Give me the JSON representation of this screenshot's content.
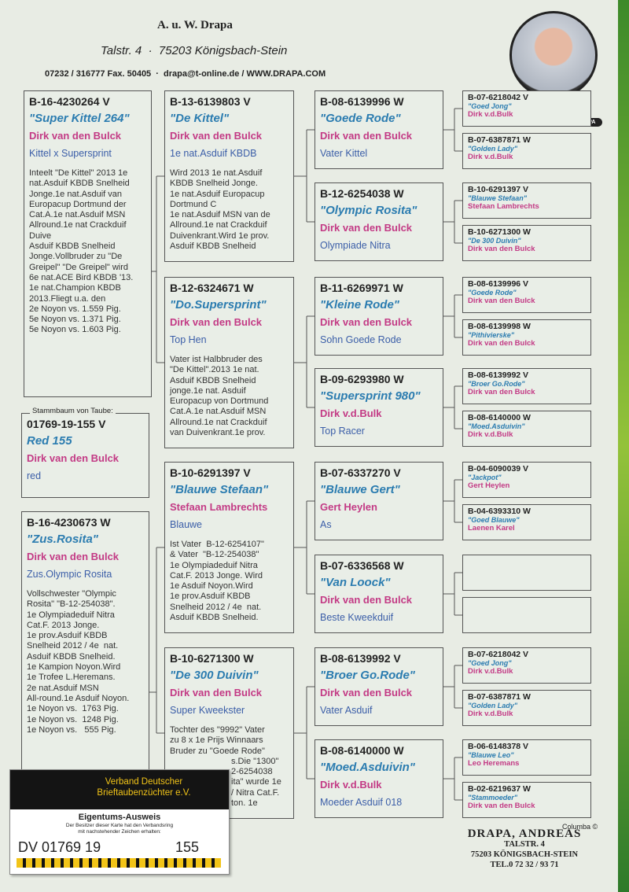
{
  "header": {
    "name": "A. u. W. Drapa",
    "address": "Talstr. 4  ·  75203 Königsbach-Stein",
    "contact": "07232 / 316777 Fax. 50405  ·  drapa@t-online.de / WWW.DRAPA.COM",
    "badge": "ANDREAS DRAPA"
  },
  "ring_label": "Stammbaum von Taube:",
  "pigeon": {
    "ring": "01769-19-155 V",
    "name": "Red  155",
    "breeder": "Dirk van den Bulck",
    "info": "red"
  },
  "parents": [
    {
      "ring": "B-16-4230264 V",
      "name": "\"Super Kittel  264\"",
      "breeder": "Dirk van den Bulck",
      "info": "Kittel x Supersprint",
      "notes": [
        "Inteelt \"De Kittel\" 2013 1e",
        "nat.Asduif KBDB Snelheid",
        "Jonge.1e nat.Asduif van",
        "Europacup Dortmund der",
        "Cat.A.1e nat.Asduif MSN",
        "Allround.1e nat Crackduif",
        "Duive",
        "Asduif KBDB Snelheid",
        "Jonge.Vollbruder zu \"De",
        "Greipel\" \"De Greipel\" wird",
        "6e nat.ACE Bird KBDB '13.",
        "1e nat.Champion KBDB",
        "2013.Fliegt u.a. den",
        "2e Noyon vs. 1.559 Pig.",
        "5e Noyon vs. 1.371 Pig.",
        "5e Noyon vs. 1.603 Pig."
      ]
    },
    {
      "ring": "B-16-4230673 W",
      "name": "\"Zus.Rosita\"",
      "breeder": "Dirk van den Bulck",
      "info": "Zus.Olympic Rosita",
      "notes": [
        "Vollschwester \"Olympic",
        "Rosita\" \"B-12-254038\".",
        "1e Olympiadeduif Nitra",
        "Cat.F. 2013 Jonge.",
        "1e prov.Asduif KBDB",
        "Snelheid 2012 / 4e  nat.",
        "Asduif KBDB Snelheid.",
        "1e Kampion Noyon.Wird",
        "1e Trofee L.Heremans.",
        "2e nat.Asduif MSN",
        "All-round.1e Asduif Noyon.",
        "1e Noyon vs.  1763 Pig.",
        "1e Noyon vs.  1248 Pig.",
        "1e Noyon vs.   555 Pig."
      ]
    }
  ],
  "grandparents": [
    {
      "ring": "B-13-6139803 V",
      "name": "\"De Kittel\"",
      "breeder": "Dirk van den Bulck",
      "info": "1e nat.Asduif KBDB",
      "notes": [
        "Wird 2013 1e nat.Asduif",
        "KBDB Snelheid Jonge.",
        "1e nat.Asduif Europacup",
        "Dortmund C",
        "1e nat.Asduif MSN van de",
        "Allround.1e nat Crackduif",
        "Duivenkrant.Wird 1e prov.",
        "Asduif KBDB Snelheid"
      ]
    },
    {
      "ring": "B-12-6324671 W",
      "name": "\"Do.Supersprint\"",
      "breeder": "Dirk van den Bulck",
      "info": "Top Hen",
      "notes": [
        "Vater ist Halbbruder des",
        "\"De Kittel\".2013 1e nat.",
        "Asduif KBDB Snelheid",
        "jonge.1e nat. Asduif",
        "Europacup von Dortmund",
        "Cat.A.1e nat.Asduif MSN",
        "Allround.1e nat Crackduif",
        "van Duivenkrant.1e prov."
      ]
    },
    {
      "ring": "B-10-6291397 V",
      "name": "\"Blauwe Stefaan\"",
      "breeder": "Stefaan Lambrechts",
      "info": "Blauwe",
      "notes": [
        "Ist Vater  B-12-6254107\"",
        "& Vater  \"B-12-254038\"",
        "1e Olympiadeduif Nitra",
        "Cat.F. 2013 Jonge. Wird",
        "1e Asduif Noyon.Wird",
        "1e prov.Asduif KBDB",
        "Snelheid 2012 / 4e  nat.",
        "Asduif KBDB Snelheid."
      ]
    },
    {
      "ring": "B-10-6271300 W",
      "name": "\"De 300 Duivin\"",
      "breeder": "Dirk van den Bulck",
      "info": "Super Kweekster",
      "notes": [
        "Tochter des \"9992\" Vater",
        "zu 8 x 1e Prijs Winnaars",
        "Bruder zu \"Goede Rode\"",
        "s.Die \"1300\"",
        "2-6254038",
        "ita\" wurde 1e",
        "/ Nitra Cat.F.",
        "ton. 1e"
      ]
    }
  ],
  "great_grandparents": [
    {
      "ring": "B-08-6139996 W",
      "name": "\"Goede Rode\"",
      "breeder": "Dirk van den Bulck",
      "info": "Vater Kittel"
    },
    {
      "ring": "B-12-6254038 W",
      "name": "\"Olympic Rosita\"",
      "breeder": "Dirk van den Bulck",
      "info": "Olympiade Nitra"
    },
    {
      "ring": "B-11-6269971 W",
      "name": "\"Kleine Rode\"",
      "breeder": "Dirk van den Bulck",
      "info": "Sohn Goede Rode"
    },
    {
      "ring": "B-09-6293980 W",
      "name": "\"Supersprint 980\"",
      "breeder": "Dirk v.d.Bulk",
      "info": "Top Racer"
    },
    {
      "ring": "B-07-6337270 V",
      "name": "\"Blauwe Gert\"",
      "breeder": "Gert Heylen",
      "info": "As"
    },
    {
      "ring": "B-07-6336568 W",
      "name": "\"Van Loock\"",
      "breeder": "Dirk van den Bulck",
      "info": "Beste Kweekduif"
    },
    {
      "ring": "B-08-6139992 V",
      "name": "\"Broer Go.Rode\"",
      "breeder": "Dirk van den Bulck",
      "info": "Vater Asduif"
    },
    {
      "ring": "B-08-6140000 W",
      "name": "\"Moed.Asduivin\"",
      "breeder": "Dirk v.d.Bulk",
      "info": "Moeder Asduif 018"
    }
  ],
  "great_great_grandparents": [
    {
      "ring": "B-07-6218042 V",
      "name": "\"Goed Jong\"",
      "breeder": "Dirk v.d.Bulk"
    },
    {
      "ring": "B-07-6387871 W",
      "name": "\"Golden Lady\"",
      "breeder": "Dirk v.d.Bulk"
    },
    {
      "ring": "B-10-6291397 V",
      "name": "\"Blauwe Stefaan\"",
      "breeder": "Stefaan Lambrechts"
    },
    {
      "ring": "B-10-6271300 W",
      "name": "\"De 300 Duivin\"",
      "breeder": "Dirk van den Bulck"
    },
    {
      "ring": "B-08-6139996 V",
      "name": "\"Goede Rode\"",
      "breeder": "Dirk van den Bulck"
    },
    {
      "ring": "B-08-6139998 W",
      "name": "\"Pithivierske\"",
      "breeder": "Dirk van den Bulck"
    },
    {
      "ring": "B-08-6139992 V",
      "name": "\"Broer Go.Rode\"",
      "breeder": "Dirk van den Bulck"
    },
    {
      "ring": "B-08-6140000 W",
      "name": "\"Moed.Asduivin\"",
      "breeder": "Dirk v.d.Bulk"
    },
    {
      "ring": "B-04-6090039 V",
      "name": "\"Jackpot\"",
      "breeder": "Gert Heylen"
    },
    {
      "ring": "B-04-6393310 W",
      "name": "\"Goed Blauwe\"",
      "breeder": "Laenen Karel"
    },
    null,
    null,
    {
      "ring": "B-07-6218042 V",
      "name": "\"Goed Jong\"",
      "breeder": "Dirk v.d.Bulk"
    },
    {
      "ring": "B-07-6387871 W",
      "name": "\"Golden Lady\"",
      "breeder": "Dirk v.d.Bulk"
    },
    {
      "ring": "B-06-6148378 V",
      "name": "\"Blauwe Leo\"",
      "breeder": "Leo Heremans"
    },
    {
      "ring": "B-02-6219637 W",
      "name": "\"Stammoeder\"",
      "breeder": "Dirk van den Bulck"
    }
  ],
  "card": {
    "org": [
      "Verband Deutscher",
      "Brieftaubenzüchter e.V."
    ],
    "title": "Eigentums-Ausweis",
    "text": [
      "Der Besitzer dieser Karte hat den Verbandsring",
      "mit nachstehender Zeichen erhalten:"
    ],
    "ring": "DV 01769 19",
    "number": "155"
  },
  "stamp": {
    "lines": [
      "DRAPA, ANDREAS",
      "TALSTR. 4",
      "75203 KÖNIGSBACH-STEIN",
      "TEL.0 72 32 / 93 71"
    ],
    "credit": "Columba ©"
  }
}
